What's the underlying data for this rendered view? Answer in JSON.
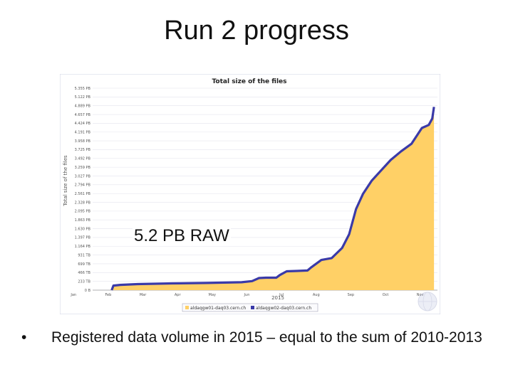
{
  "slide": {
    "title": "Run 2 progress",
    "overlay_label": "5.2 PB RAW",
    "bullet_symbol": "•",
    "bullet_text": "Registered data volume in 2015 – equal to the sum of 2010-2013"
  },
  "chart_data": {
    "type": "area",
    "title": "Total size of the files",
    "ylabel": "Total size of the files",
    "xlabel": "2015",
    "x_ticks": [
      "Jan",
      "Feb",
      "Mar",
      "Apr",
      "May",
      "Jun",
      "Jul",
      "Aug",
      "Sep",
      "Oct",
      "Nov"
    ],
    "y_ticks": [
      "0 B",
      "233 TB",
      "466 TB",
      "699 TB",
      "931 TB",
      "1.164 PB",
      "1.397 PB",
      "1.630 PB",
      "1.863 PB",
      "2.095 PB",
      "2.328 PB",
      "2.561 PB",
      "2.794 PB",
      "3.027 PB",
      "3.259 PB",
      "3.492 PB",
      "3.725 PB",
      "3.958 PB",
      "4.191 PB",
      "4.424 PB",
      "4.657 PB",
      "4.889 PB",
      "5.122 PB",
      "5.355 PB"
    ],
    "ylim_pb": [
      0,
      5.355
    ],
    "xlim_month": [
      0.7,
      10.65
    ],
    "legend": [
      "aldaqgw01-daq03.cern.ch",
      "aldaqgw02-daq03.cern.ch"
    ],
    "series": [
      {
        "x": [
          1.25,
          1.3,
          1.5,
          2,
          3,
          4,
          5,
          5.3,
          5.5,
          5.7,
          6,
          6.1,
          6.3,
          6.6,
          6.9,
          7,
          7.3,
          7.6,
          7.9,
          8.1,
          8.3,
          8.5,
          8.75,
          9,
          9.3,
          9.6,
          9.9,
          10.2,
          10.4,
          10.5,
          10.55
        ],
        "values": [
          0,
          0.12,
          0.14,
          0.16,
          0.18,
          0.19,
          0.21,
          0.24,
          0.32,
          0.33,
          0.33,
          0.4,
          0.5,
          0.51,
          0.52,
          0.6,
          0.8,
          0.85,
          1.12,
          1.48,
          2.15,
          2.55,
          2.9,
          3.15,
          3.45,
          3.68,
          3.88,
          4.3,
          4.38,
          4.55,
          4.86
        ]
      }
    ],
    "colors": {
      "fill": "#ffd066",
      "line": "#3a3aa8",
      "grid": "#e4e4ee",
      "panel_border": "#9aa0c6"
    }
  }
}
